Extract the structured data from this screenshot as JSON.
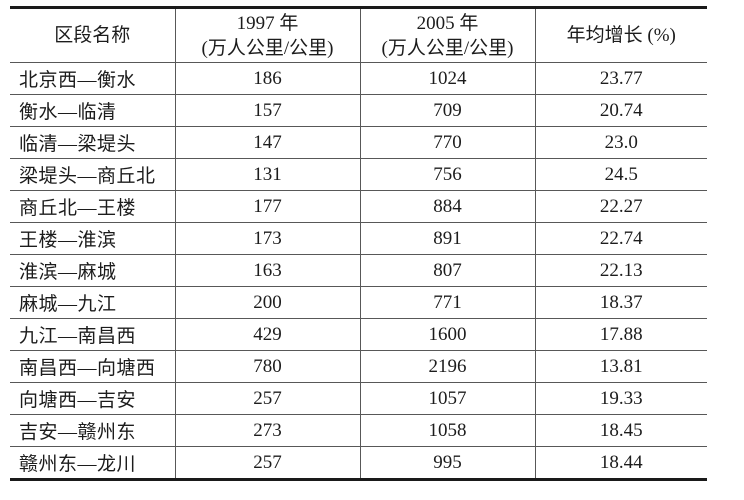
{
  "table": {
    "title_semantic": "rail-section-passenger-density-table",
    "columns": [
      {
        "label": "区段名称"
      },
      {
        "line1": "1997 年",
        "line2": "(万人公里/公里)"
      },
      {
        "line1": "2005 年",
        "line2": "(万人公里/公里)"
      },
      {
        "label": "年均增长 (%)"
      }
    ],
    "rows": [
      {
        "section": "北京西—衡水",
        "v1997": "186",
        "v2005": "1024",
        "growth": "23.77"
      },
      {
        "section": "衡水—临清",
        "v1997": "157",
        "v2005": "709",
        "growth": "20.74"
      },
      {
        "section": "临清—梁堤头",
        "v1997": "147",
        "v2005": "770",
        "growth": "23.0"
      },
      {
        "section": "梁堤头—商丘北",
        "v1997": "131",
        "v2005": "756",
        "growth": "24.5"
      },
      {
        "section": "商丘北—王楼",
        "v1997": "177",
        "v2005": "884",
        "growth": "22.27"
      },
      {
        "section": "王楼—淮滨",
        "v1997": "173",
        "v2005": "891",
        "growth": "22.74"
      },
      {
        "section": "淮滨—麻城",
        "v1997": "163",
        "v2005": "807",
        "growth": "22.13"
      },
      {
        "section": "麻城—九江",
        "v1997": "200",
        "v2005": "771",
        "growth": "18.37"
      },
      {
        "section": "九江—南昌西",
        "v1997": "429",
        "v2005": "1600",
        "growth": "17.88"
      },
      {
        "section": "南昌西—向塘西",
        "v1997": "780",
        "v2005": "2196",
        "growth": "13.81"
      },
      {
        "section": "向塘西—吉安",
        "v1997": "257",
        "v2005": "1057",
        "growth": "19.33"
      },
      {
        "section": "吉安—赣州东",
        "v1997": "273",
        "v2005": "1058",
        "growth": "18.45"
      },
      {
        "section": "赣州东—龙川",
        "v1997": "257",
        "v2005": "995",
        "growth": "18.44"
      }
    ]
  }
}
